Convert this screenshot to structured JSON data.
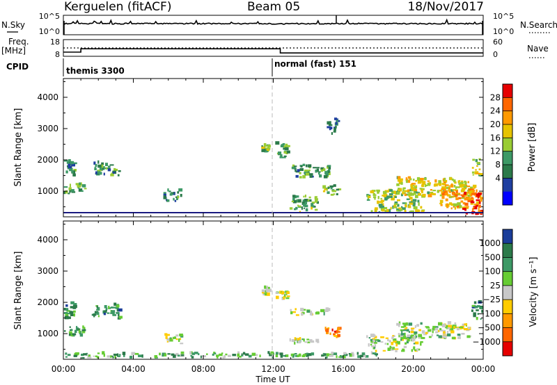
{
  "header": {
    "station": "Kerguelen (fitACF)",
    "beam": "Beam 05",
    "date": "18/Nov/2017"
  },
  "strip": {
    "nsky_label": "N.Sky",
    "nsky_ticks": [
      "10^5",
      "10^0"
    ],
    "nsearch_label": "N.Search",
    "nsearch_ticks": [
      "10^5",
      "10^0"
    ],
    "freq_label_1": "Freq.",
    "freq_label_2": "[MHz]",
    "freq_ticks": [
      "18",
      "8"
    ],
    "nave_label": "Nave",
    "nave_ticks": [
      "60",
      "0"
    ],
    "cpid_label": "CPID",
    "cpid_modes": [
      "themis 3300",
      "normal (fast) 151"
    ]
  },
  "chart_data": [
    {
      "type": "line",
      "name": "timeseries-strips",
      "x_range": [
        0,
        24
      ],
      "freq_mhz": [
        {
          "x": [
            0,
            1
          ],
          "value": 10.5
        },
        {
          "x": [
            1,
            12.4
          ],
          "value": 12.5
        },
        {
          "x": [
            12.4,
            24
          ],
          "value": 10.0
        }
      ],
      "nave_dotted_level": 30,
      "nsky_level": "10^4",
      "cpid_change_hour": 12.0
    },
    {
      "type": "heatmap",
      "name": "power",
      "ylabel": "Slant Range [km]",
      "ylim": [
        180,
        4600
      ],
      "yticks": [
        1000,
        2000,
        3000,
        4000
      ],
      "colorbar": {
        "label": "Power [dB]",
        "ticks": [
          "28",
          "24",
          "20",
          "16",
          "12",
          "8",
          "4"
        ],
        "colors": [
          "#e60000",
          "#ff6600",
          "#ff9900",
          "#e6c300",
          "#99cc33",
          "#3d9966",
          "#2b7a4a",
          "#1f3fa0",
          "#0000ff"
        ]
      },
      "patches": [
        {
          "t": [
            0.0,
            0.6
          ],
          "r": [
            1400,
            1950
          ],
          "level": 0.3
        },
        {
          "t": [
            0.0,
            1.2
          ],
          "r": [
            900,
            1200
          ],
          "level": 0.35
        },
        {
          "t": [
            1.6,
            3.2
          ],
          "r": [
            1450,
            1900
          ],
          "level": 0.3
        },
        {
          "t": [
            5.7,
            6.7
          ],
          "r": [
            600,
            1000
          ],
          "level": 0.3
        },
        {
          "t": [
            11.3,
            11.7
          ],
          "r": [
            2200,
            2450
          ],
          "level": 0.4
        },
        {
          "t": [
            12.1,
            12.8
          ],
          "r": [
            2050,
            2500
          ],
          "level": 0.35
        },
        {
          "t": [
            12.9,
            15.2
          ],
          "r": [
            1400,
            1800
          ],
          "level": 0.35
        },
        {
          "t": [
            12.9,
            14.5
          ],
          "r": [
            300,
            800
          ],
          "level": 0.4
        },
        {
          "t": [
            14.8,
            15.8
          ],
          "r": [
            850,
            1150
          ],
          "level": 0.45
        },
        {
          "t": [
            15.0,
            15.6
          ],
          "r": [
            2800,
            3300
          ],
          "level": 0.25
        },
        {
          "t": [
            17.3,
            20.5
          ],
          "r": [
            300,
            1000
          ],
          "level": 0.5
        },
        {
          "t": [
            19.0,
            23.2
          ],
          "r": [
            800,
            1400
          ],
          "level": 0.6
        },
        {
          "t": [
            21.5,
            23.8
          ],
          "r": [
            400,
            1200
          ],
          "level": 0.7
        },
        {
          "t": [
            22.8,
            24.0
          ],
          "r": [
            200,
            900
          ],
          "level": 0.9
        },
        {
          "t": [
            23.3,
            23.9
          ],
          "r": [
            1400,
            2000
          ],
          "level": 0.55
        }
      ]
    },
    {
      "type": "heatmap",
      "name": "velocity",
      "ylabel": "Slant Range [km]",
      "ylim": [
        180,
        4600
      ],
      "yticks": [
        1000,
        2000,
        3000,
        4000
      ],
      "xlabel": "Time UT",
      "xticks": [
        "00:00",
        "04:00",
        "08:00",
        "12:00",
        "16:00",
        "20:00",
        "00:00"
      ],
      "colorbar": {
        "label": "Velocity [m s⁻¹]",
        "ticks": [
          "1000",
          "500",
          "100",
          "25",
          "−25",
          "−100",
          "−500",
          "−1000"
        ],
        "colors": [
          "#1a3d99",
          "#2b7a4a",
          "#3d9966",
          "#66cc33",
          "#c8c8c8",
          "#ffcc00",
          "#ff9900",
          "#ff6600",
          "#e60000"
        ]
      },
      "patches": [
        {
          "t": [
            0.0,
            0.6
          ],
          "r": [
            1400,
            1950
          ],
          "level": 0.2
        },
        {
          "t": [
            0.0,
            1.2
          ],
          "r": [
            900,
            1200
          ],
          "level": 0.25
        },
        {
          "t": [
            1.6,
            3.2
          ],
          "r": [
            1450,
            1900
          ],
          "level": 0.2
        },
        {
          "t": [
            5.7,
            6.7
          ],
          "r": [
            650,
            950
          ],
          "level": 0.45
        },
        {
          "t": [
            11.3,
            11.7
          ],
          "r": [
            2200,
            2450
          ],
          "level": 0.45
        },
        {
          "t": [
            12.1,
            12.8
          ],
          "r": [
            2050,
            2300
          ],
          "level": 0.5
        },
        {
          "t": [
            12.9,
            15.2
          ],
          "r": [
            1550,
            1750
          ],
          "level": 0.45
        },
        {
          "t": [
            12.9,
            14.5
          ],
          "r": [
            650,
            800
          ],
          "level": 0.45
        },
        {
          "t": [
            14.9,
            15.7
          ],
          "r": [
            850,
            1150
          ],
          "level": 0.8
        },
        {
          "t": [
            17.3,
            20.5
          ],
          "r": [
            400,
            900
          ],
          "level": 0.45
        },
        {
          "t": [
            19.0,
            23.2
          ],
          "r": [
            800,
            1300
          ],
          "level": 0.45
        },
        {
          "t": [
            0.0,
            18.0
          ],
          "r": [
            200,
            350
          ],
          "level": 0.3
        },
        {
          "t": [
            23.3,
            23.9
          ],
          "r": [
            1400,
            2000
          ],
          "level": 0.2
        }
      ]
    }
  ]
}
